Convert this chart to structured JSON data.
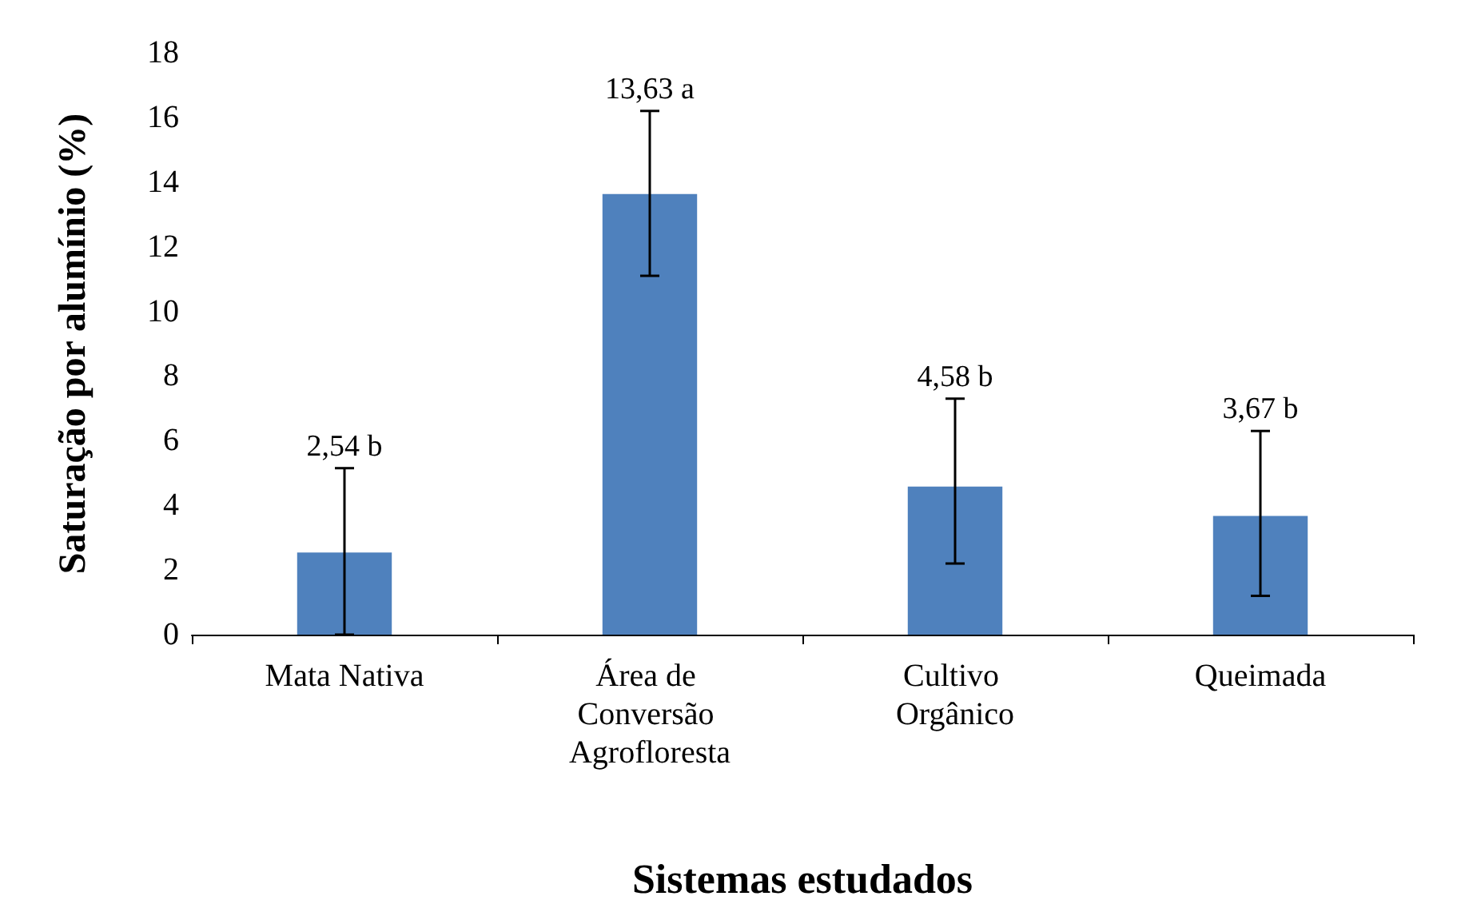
{
  "chart_data": {
    "type": "bar",
    "xlabel": "Sistemas estudados",
    "ylabel": "Saturação por alumínio (%)",
    "categories": [
      "Mata Nativa",
      "Área de Conversão Agrofloresta",
      "Cultivo Orgânico",
      "Queimada"
    ],
    "values": [
      2.54,
      13.63,
      4.58,
      3.67
    ],
    "value_labels": [
      "2,54 b",
      "13,63 a",
      "4,58 b",
      "3,67 b"
    ],
    "errors": [
      [
        0,
        5.15
      ],
      [
        11.1,
        16.2
      ],
      [
        2.2,
        7.3
      ],
      [
        1.2,
        6.3
      ]
    ],
    "color": "#4f81bd",
    "ylim": [
      0,
      18
    ],
    "yticks": [
      0,
      2,
      4,
      6,
      8,
      10,
      12,
      14,
      16,
      18
    ],
    "grid": false
  }
}
